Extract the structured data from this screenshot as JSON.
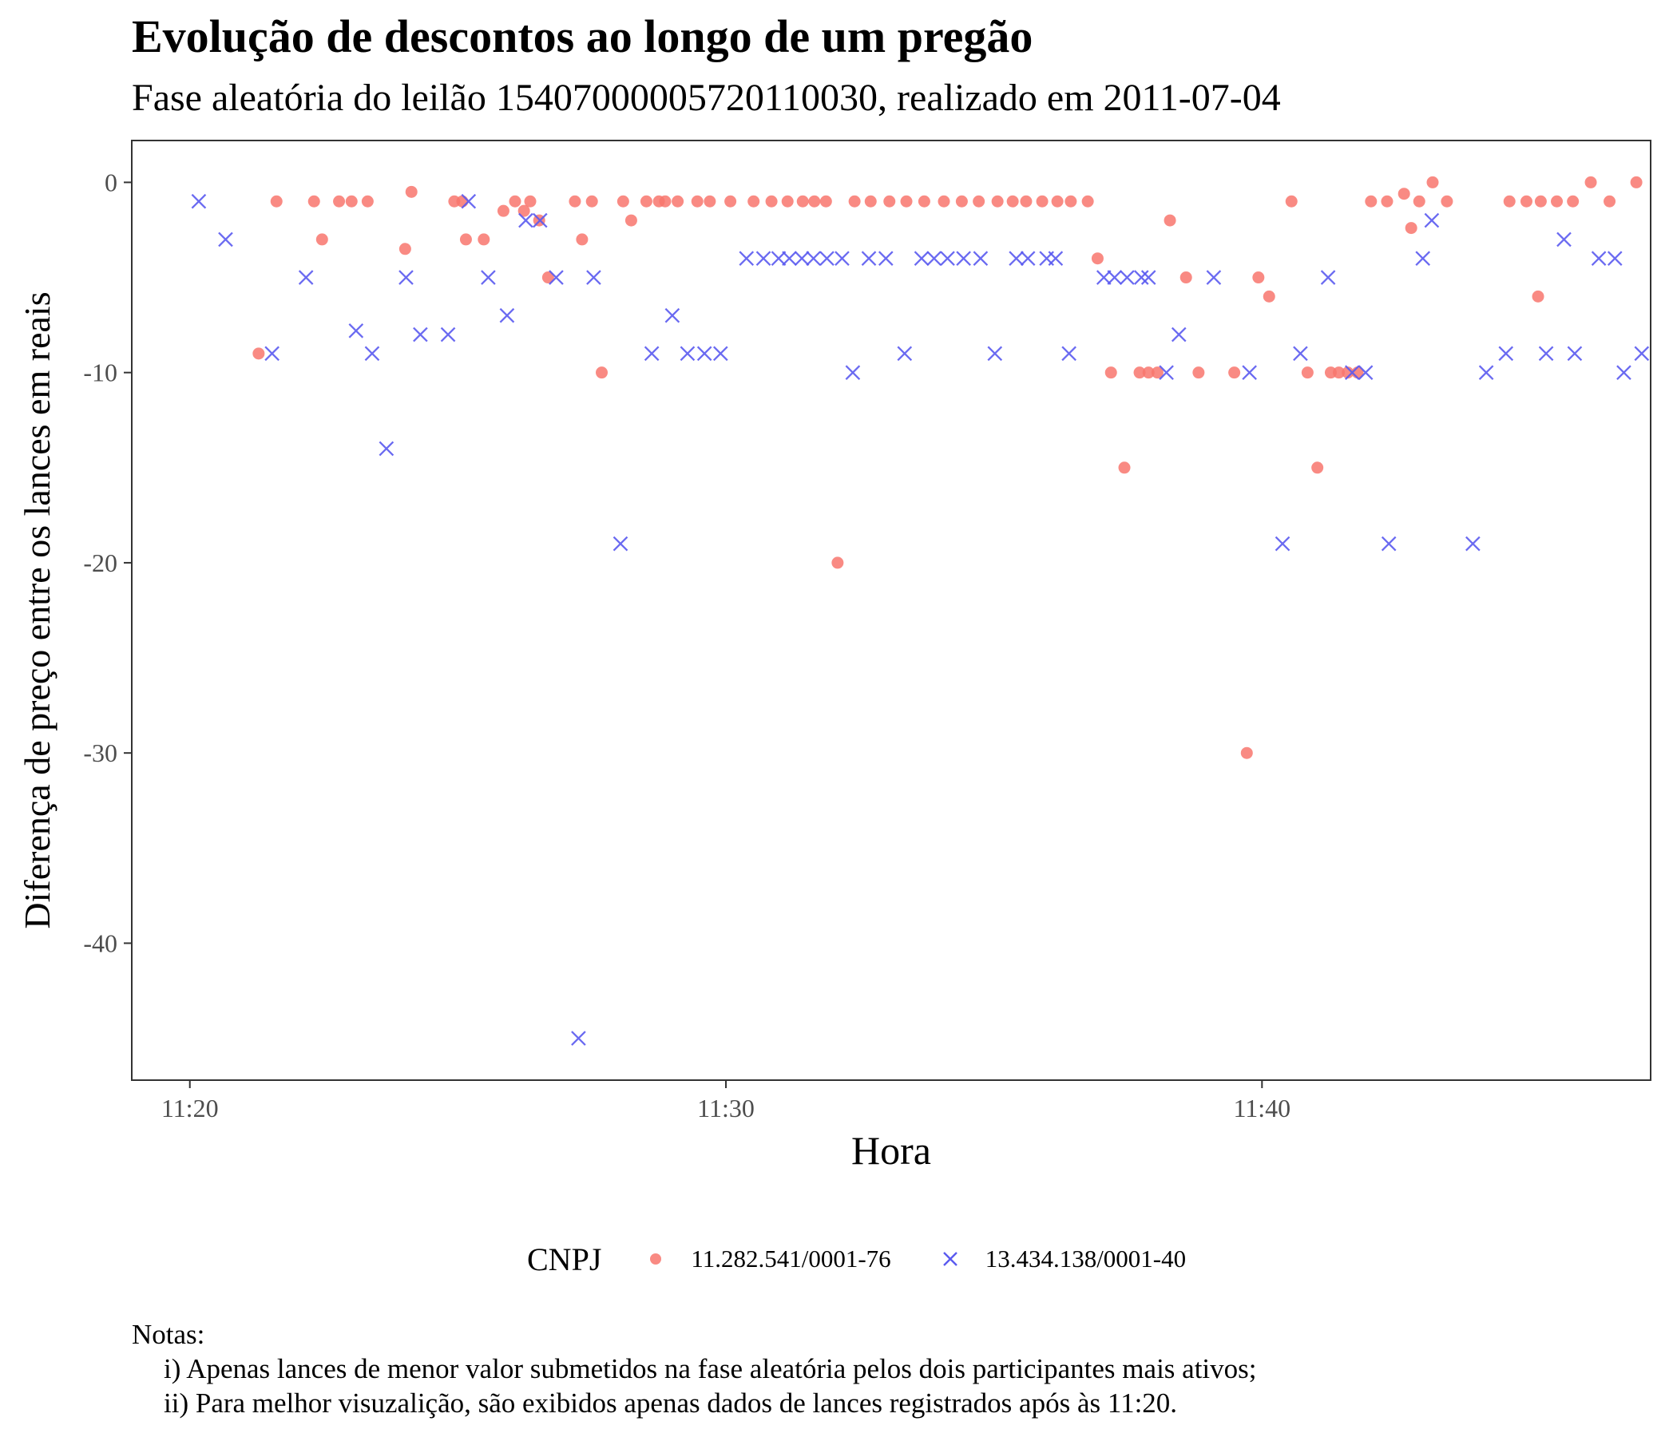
{
  "title": "Evolução de descontos ao longo de um pregão",
  "subtitle": "Fase aleatória do leilão 15407000005720110030, realizado em 2011-07-04",
  "notes": {
    "heading": "Notas:",
    "items": [
      "i) Apenas lances de menor valor submetidos na fase aleatória pelos dois participantes mais ativos;",
      "ii) Para melhor visuzalição, são exibidos apenas dados de lances registrados após às 11:20."
    ]
  },
  "colors": {
    "series1": "#F8766D",
    "series2": "#5A5AF0"
  },
  "chart_data": {
    "type": "scatter",
    "xlabel": "Hora",
    "ylabel": "Diferença de preço entre os lances em reais",
    "x_unit": "time (HH:MM:SS)",
    "xlim": [
      "11:18:55",
      "11:47:15"
    ],
    "ylim": [
      -47.2,
      2.2
    ],
    "xticks": [
      "11:20",
      "11:30",
      "11:40"
    ],
    "yticks": [
      0,
      -10,
      -20,
      -30,
      -40
    ],
    "grid": false,
    "legend": {
      "title": "CNPJ",
      "position": "bottom"
    },
    "series": [
      {
        "name": "11.282.541/0001-76",
        "marker": "circle",
        "points": [
          [
            "11:21:17",
            -9
          ],
          [
            "11:21:37",
            -1
          ],
          [
            "11:22:19",
            -1
          ],
          [
            "11:22:28",
            -3
          ],
          [
            "11:22:47",
            -1
          ],
          [
            "11:23:01",
            -1
          ],
          [
            "11:23:19",
            -1
          ],
          [
            "11:24:01",
            -3.5
          ],
          [
            "11:24:08",
            -0.5
          ],
          [
            "11:24:56",
            -1
          ],
          [
            "11:25:05",
            -1
          ],
          [
            "11:25:09",
            -3
          ],
          [
            "11:25:29",
            -3
          ],
          [
            "11:25:51",
            -1.5
          ],
          [
            "11:26:04",
            -1
          ],
          [
            "11:26:14",
            -1.5
          ],
          [
            "11:26:21",
            -1
          ],
          [
            "11:26:31",
            -2
          ],
          [
            "11:26:41",
            -5
          ],
          [
            "11:27:11",
            -1
          ],
          [
            "11:27:19",
            -3
          ],
          [
            "11:27:30",
            -1
          ],
          [
            "11:27:41",
            -10
          ],
          [
            "11:28:05",
            -1
          ],
          [
            "11:28:14",
            -2
          ],
          [
            "11:28:31",
            -1
          ],
          [
            "11:28:45",
            -1
          ],
          [
            "11:28:52",
            -1
          ],
          [
            "11:29:06",
            -1
          ],
          [
            "11:29:28",
            -1
          ],
          [
            "11:29:42",
            -1
          ],
          [
            "11:30:05",
            -1
          ],
          [
            "11:30:31",
            -1
          ],
          [
            "11:30:51",
            -1
          ],
          [
            "11:31:09",
            -1
          ],
          [
            "11:31:26",
            -1
          ],
          [
            "11:31:39",
            -1
          ],
          [
            "11:31:52",
            -1
          ],
          [
            "11:32:05",
            -20
          ],
          [
            "11:32:24",
            -1
          ],
          [
            "11:32:42",
            -1
          ],
          [
            "11:33:03",
            -1
          ],
          [
            "11:33:22",
            -1
          ],
          [
            "11:33:42",
            -1
          ],
          [
            "11:34:04",
            -1
          ],
          [
            "11:34:24",
            -1
          ],
          [
            "11:34:43",
            -1
          ],
          [
            "11:35:04",
            -1
          ],
          [
            "11:35:21",
            -1
          ],
          [
            "11:35:36",
            -1
          ],
          [
            "11:35:54",
            -1
          ],
          [
            "11:36:11",
            -1
          ],
          [
            "11:36:26",
            -1
          ],
          [
            "11:36:45",
            -1
          ],
          [
            "11:36:56",
            -4
          ],
          [
            "11:37:11",
            -10
          ],
          [
            "11:37:26",
            -15
          ],
          [
            "11:37:43",
            -10
          ],
          [
            "11:37:53",
            -10
          ],
          [
            "11:38:03",
            -10
          ],
          [
            "11:38:17",
            -2
          ],
          [
            "11:38:35",
            -5
          ],
          [
            "11:38:49",
            -10
          ],
          [
            "11:39:29",
            -10
          ],
          [
            "11:39:43",
            -30
          ],
          [
            "11:39:56",
            -5
          ],
          [
            "11:40:08",
            -6
          ],
          [
            "11:40:33",
            -1
          ],
          [
            "11:40:51",
            -10
          ],
          [
            "11:41:02",
            -15
          ],
          [
            "11:41:17",
            -10
          ],
          [
            "11:41:26",
            -10
          ],
          [
            "11:41:36",
            -10
          ],
          [
            "11:41:47",
            -10
          ],
          [
            "11:42:02",
            -1
          ],
          [
            "11:42:20",
            -1
          ],
          [
            "11:42:39",
            -0.6
          ],
          [
            "11:42:47",
            -2.4
          ],
          [
            "11:42:56",
            -1
          ],
          [
            "11:43:11",
            0
          ],
          [
            "11:43:27",
            -1
          ],
          [
            "11:44:37",
            -1
          ],
          [
            "11:44:56",
            -1
          ],
          [
            "11:45:09",
            -6
          ],
          [
            "11:45:12",
            -1
          ],
          [
            "11:45:30",
            -1
          ],
          [
            "11:45:48",
            -1
          ],
          [
            "11:46:08",
            0
          ],
          [
            "11:46:29",
            -1
          ],
          [
            "11:46:59",
            0
          ]
        ]
      },
      {
        "name": "13.434.138/0001-40",
        "marker": "x",
        "points": [
          [
            "11:20:10",
            -1
          ],
          [
            "11:20:40",
            -3
          ],
          [
            "11:21:32",
            -9
          ],
          [
            "11:22:10",
            -5
          ],
          [
            "11:23:06",
            -7.8
          ],
          [
            "11:23:24",
            -9
          ],
          [
            "11:23:40",
            -14
          ],
          [
            "11:24:02",
            -5
          ],
          [
            "11:24:18",
            -8
          ],
          [
            "11:24:49",
            -8
          ],
          [
            "11:25:12",
            -1
          ],
          [
            "11:25:34",
            -5
          ],
          [
            "11:25:55",
            -7
          ],
          [
            "11:26:16",
            -2
          ],
          [
            "11:26:32",
            -2
          ],
          [
            "11:26:50",
            -5
          ],
          [
            "11:27:15",
            -45
          ],
          [
            "11:27:32",
            -5
          ],
          [
            "11:28:02",
            -19
          ],
          [
            "11:28:37",
            -9
          ],
          [
            "11:29:00",
            -7
          ],
          [
            "11:29:17",
            -9
          ],
          [
            "11:29:36",
            -9
          ],
          [
            "11:29:54",
            -9
          ],
          [
            "11:30:23",
            -4
          ],
          [
            "11:30:42",
            -4
          ],
          [
            "11:30:59",
            -4
          ],
          [
            "11:31:11",
            -4
          ],
          [
            "11:31:25",
            -4
          ],
          [
            "11:31:38",
            -4
          ],
          [
            "11:31:53",
            -4
          ],
          [
            "11:32:10",
            -4
          ],
          [
            "11:32:22",
            -10
          ],
          [
            "11:32:40",
            -4
          ],
          [
            "11:32:59",
            -4
          ],
          [
            "11:33:20",
            -9
          ],
          [
            "11:33:39",
            -4
          ],
          [
            "11:33:53",
            -4
          ],
          [
            "11:34:08",
            -4
          ],
          [
            "11:34:26",
            -4
          ],
          [
            "11:34:45",
            -4
          ],
          [
            "11:35:01",
            -9
          ],
          [
            "11:35:25",
            -4
          ],
          [
            "11:35:38",
            -4
          ],
          [
            "11:35:59",
            -4
          ],
          [
            "11:36:09",
            -4
          ],
          [
            "11:36:24",
            -9
          ],
          [
            "11:37:03",
            -5
          ],
          [
            "11:37:15",
            -5
          ],
          [
            "11:37:29",
            -5
          ],
          [
            "11:37:45",
            -5
          ],
          [
            "11:37:53",
            -5
          ],
          [
            "11:38:13",
            -10
          ],
          [
            "11:38:27",
            -8
          ],
          [
            "11:39:06",
            -5
          ],
          [
            "11:39:46",
            -10
          ],
          [
            "11:40:23",
            -19
          ],
          [
            "11:40:43",
            -9
          ],
          [
            "11:41:14",
            -5
          ],
          [
            "11:41:41",
            -10
          ],
          [
            "11:41:56",
            -10
          ],
          [
            "11:42:22",
            -19
          ],
          [
            "11:43:00",
            -4
          ],
          [
            "11:43:10",
            -2
          ],
          [
            "11:43:56",
            -19
          ],
          [
            "11:44:11",
            -10
          ],
          [
            "11:44:33",
            -9
          ],
          [
            "11:45:18",
            -9
          ],
          [
            "11:45:38",
            -3
          ],
          [
            "11:45:50",
            -9
          ],
          [
            "11:46:17",
            -4
          ],
          [
            "11:46:35",
            -4
          ],
          [
            "11:46:45",
            -10
          ],
          [
            "11:47:05",
            -9
          ]
        ]
      }
    ]
  }
}
